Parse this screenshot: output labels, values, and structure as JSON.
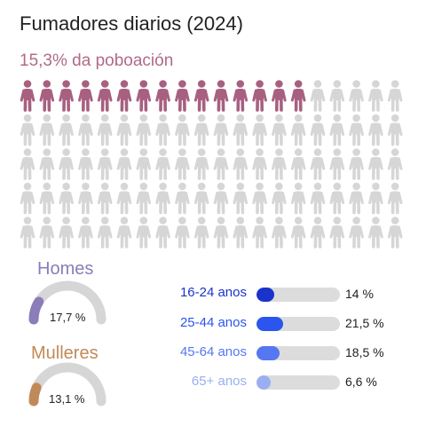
{
  "title": "Fumadores diarios (2024)",
  "subtitle": "15,3% da poboación",
  "colors": {
    "highlight_person": "#a86080",
    "neutral_person": "#d6d6d6",
    "gauge_track": "#d6d6d6",
    "men": "#8a7db8",
    "women": "#c08a58"
  },
  "icons": {
    "person": "person-icon"
  },
  "chart_data": [
    {
      "type": "pictogram",
      "title": "Fumadores diarios (2024)",
      "subtitle": "15,3% da poboación",
      "total_icons": 100,
      "highlighted_icons": 15,
      "value_percent": 15.3
    },
    {
      "type": "gauge",
      "series": [
        {
          "name": "Homes",
          "value": 17.7,
          "label": "17,7 %"
        },
        {
          "name": "Mulleres",
          "value": 13.1,
          "label": "13,1 %"
        }
      ],
      "max": 100
    },
    {
      "type": "bar",
      "orientation": "horizontal",
      "categories": [
        "16-24 anos",
        "25-44 anos",
        "45-64 anos",
        "65+ anos"
      ],
      "values": [
        14,
        21.5,
        18.5,
        6.6
      ],
      "value_labels": [
        "14 %",
        "21,5 %",
        "18,5 %",
        "6,6 %"
      ],
      "colors": [
        "#1a33cc",
        "#2a55ee",
        "#5577f2",
        "#99aff2"
      ],
      "xlim": [
        0,
        100
      ]
    }
  ]
}
